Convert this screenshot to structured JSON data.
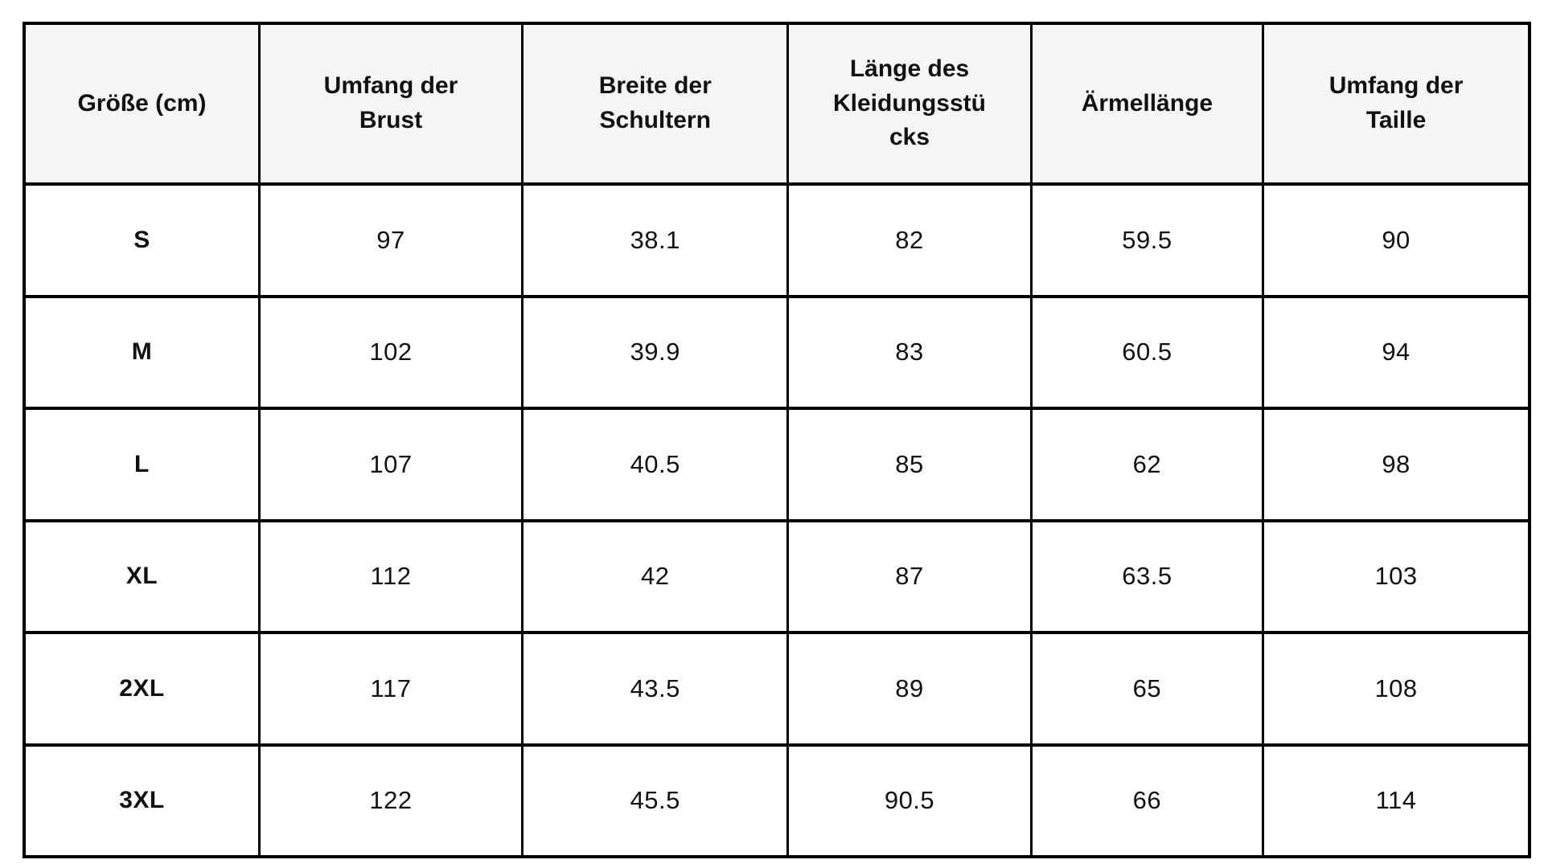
{
  "chart_data": {
    "type": "table",
    "columns": [
      "Größe (cm)",
      "Umfang der Brust",
      "Breite der Schultern",
      "Länge des Kleidungsstücks",
      "Ärmellänge",
      "Umfang der Taille"
    ],
    "rows": [
      {
        "size": "S",
        "values": [
          "97",
          "38.1",
          "82",
          "59.5",
          "90"
        ]
      },
      {
        "size": "M",
        "values": [
          "102",
          "39.9",
          "83",
          "60.5",
          "94"
        ]
      },
      {
        "size": "L",
        "values": [
          "107",
          "40.5",
          "85",
          "62",
          "98"
        ]
      },
      {
        "size": "XL",
        "values": [
          "112",
          "42",
          "87",
          "63.5",
          "103"
        ]
      },
      {
        "size": "2XL",
        "values": [
          "117",
          "43.5",
          "89",
          "65",
          "108"
        ]
      },
      {
        "size": "3XL",
        "values": [
          "122",
          "45.5",
          "90.5",
          "66",
          "114"
        ]
      }
    ]
  },
  "styles": {
    "header_bg": "#f5f5f5",
    "row_bg": "#ffffff",
    "border_color": "#000000",
    "text_color": "#111111"
  }
}
